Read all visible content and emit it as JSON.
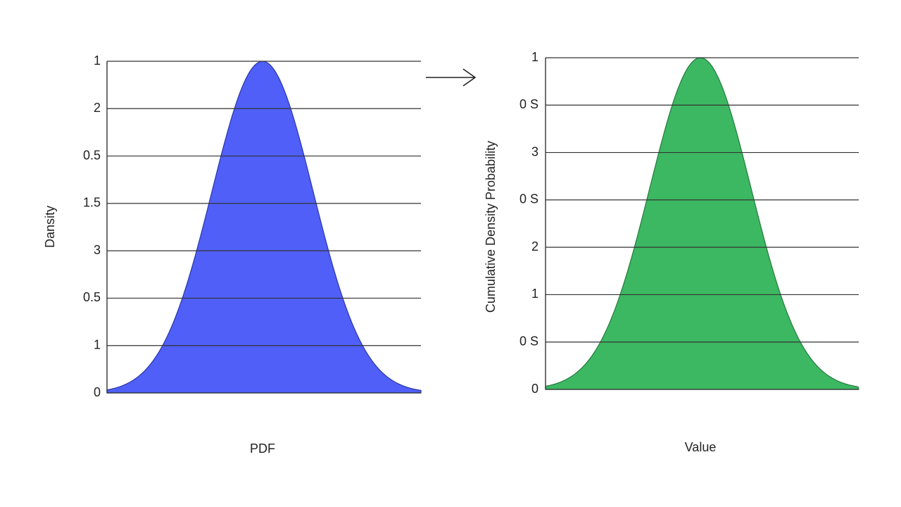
{
  "panels": [
    {
      "y_axis_label": "Dansity",
      "x_axis_label": "PDF",
      "tick_labels": [
        "1",
        "2",
        "0.5",
        "1.5",
        "3",
        "0.5",
        "1",
        "0"
      ]
    },
    {
      "y_axis_label": "Cumulative Density Probability",
      "x_axis_label": "Value",
      "tick_labels": [
        "1",
        "0 S",
        "3",
        "0 S",
        "2",
        "1",
        "0 S",
        "0"
      ]
    }
  ]
}
